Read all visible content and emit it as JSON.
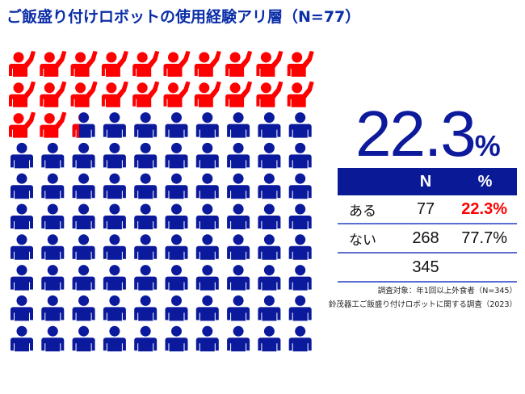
{
  "title": "ご飯盛り付けロボットの使用経験アリ層（N=77）",
  "colors": {
    "used": "#ff0000",
    "not_used": "#0b1a9c",
    "header_bg": "#0a1a96",
    "big_number": "#0d1a9c"
  },
  "chart_data": {
    "type": "pictogram",
    "total_icons": 100,
    "columns": 10,
    "highlight_percent": 22.3,
    "series": [
      {
        "name": "ある",
        "value": 22.3
      },
      {
        "name": "ない",
        "value": 77.7
      }
    ]
  },
  "big_number": {
    "value": "22.3",
    "unit": "%"
  },
  "table": {
    "headers": [
      "",
      "N",
      "%"
    ],
    "rows": [
      {
        "label": "ある",
        "n": "77",
        "pct": "22.3%"
      },
      {
        "label": "ない",
        "n": "268",
        "pct": "77.7%"
      },
      {
        "label": "",
        "n": "345",
        "pct": ""
      }
    ]
  },
  "notes": [
    "調査対象：年1回以上外食者（N=345）",
    "鈴茂器工ご飯盛り付けロボットに関する調査（2023）"
  ]
}
